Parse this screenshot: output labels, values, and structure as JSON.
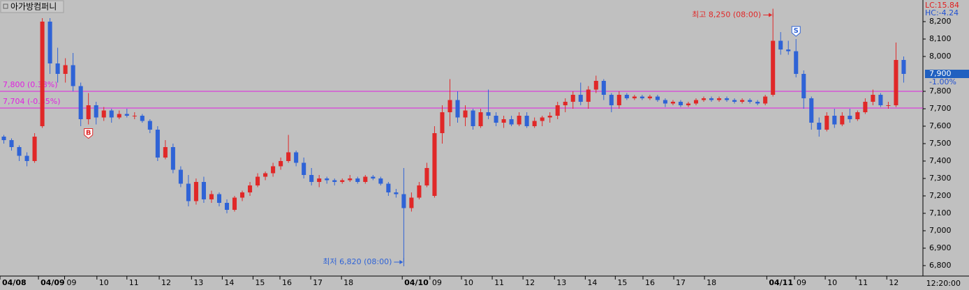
{
  "chart_data": {
    "type": "candlestick",
    "title": "아가방컴퍼니",
    "indicators": [
      {
        "text": "LC:15.84",
        "color": "#e02020"
      },
      {
        "text": "HC:-4.24",
        "color": "#2050d0"
      }
    ],
    "up_color": "#e02828",
    "down_color": "#2f63d6",
    "open": [
      7540,
      7520,
      7480,
      7430,
      7400,
      7600,
      8200,
      7960,
      7900,
      7950,
      7830,
      7640,
      7720,
      7650,
      7690,
      7650,
      7670,
      7660,
      7660,
      7630,
      7580,
      7420,
      7480,
      7350,
      7270,
      7170,
      7280,
      7180,
      7210,
      7160,
      7120,
      7190,
      7220,
      7260,
      7310,
      7330,
      7370,
      7400,
      7450,
      7390,
      7320,
      7280,
      7300,
      7290,
      7280,
      7290,
      7300,
      7280,
      7310,
      7300,
      7270,
      7220,
      7210,
      7130,
      7190,
      7260,
      7200,
      7560,
      7680,
      7750,
      7650,
      7690,
      7600,
      7680,
      7660,
      7620,
      7640,
      7610,
      7660,
      7600,
      7630,
      7650,
      7660,
      7720,
      7740,
      7780,
      7740,
      7810,
      7860,
      7780,
      7720,
      7780,
      7760,
      7770,
      7760,
      7770,
      7750,
      7730,
      7740,
      7720,
      7730,
      7750,
      7760,
      7750,
      7760,
      7750,
      7740,
      7750,
      7740,
      7730,
      7780,
      8090,
      8040,
      8030,
      7900,
      7760,
      7620,
      7580,
      7660,
      7610,
      7660,
      7640,
      7680,
      7740,
      7780,
      7720,
      7720,
      7980
    ],
    "high": [
      7550,
      7530,
      7490,
      7450,
      7560,
      8220,
      8220,
      8050,
      7990,
      8020,
      7850,
      7790,
      7740,
      7710,
      7700,
      7690,
      7700,
      7680,
      7670,
      7640,
      7600,
      7520,
      7500,
      7370,
      7320,
      7300,
      7310,
      7230,
      7220,
      7180,
      7200,
      7230,
      7280,
      7330,
      7340,
      7390,
      7420,
      7550,
      7460,
      7420,
      7360,
      7320,
      7310,
      7300,
      7300,
      7320,
      7310,
      7320,
      7320,
      7310,
      7280,
      7240,
      7360,
      7220,
      7280,
      7390,
      7600,
      7720,
      7870,
      7800,
      7720,
      7700,
      7700,
      7810,
      7680,
      7660,
      7660,
      7680,
      7680,
      7650,
      7660,
      7680,
      7740,
      7760,
      7800,
      7850,
      7830,
      7890,
      7870,
      7790,
      7800,
      7790,
      7780,
      7780,
      7780,
      7780,
      7760,
      7750,
      7750,
      7740,
      7760,
      7770,
      7770,
      7770,
      7770,
      7760,
      7760,
      7760,
      7750,
      7780,
      8250,
      8140,
      8090,
      8100,
      7920,
      7770,
      7650,
      7680,
      7700,
      7680,
      7700,
      7690,
      7760,
      7810,
      7790,
      7740,
      8080,
      8000
    ],
    "low": [
      7500,
      7460,
      7400,
      7370,
      7390,
      7590,
      7900,
      7850,
      7850,
      7800,
      7600,
      7610,
      7610,
      7630,
      7620,
      7640,
      7650,
      7640,
      7620,
      7560,
      7400,
      7410,
      7330,
      7250,
      7140,
      7150,
      7160,
      7160,
      7140,
      7100,
      7110,
      7170,
      7200,
      7250,
      7290,
      7310,
      7350,
      7390,
      7370,
      7300,
      7260,
      7250,
      7270,
      7260,
      7270,
      7280,
      7270,
      7270,
      7290,
      7260,
      7200,
      7190,
      6820,
      7110,
      7180,
      7250,
      7190,
      7500,
      7600,
      7620,
      7600,
      7580,
      7590,
      7640,
      7600,
      7590,
      7600,
      7600,
      7590,
      7590,
      7600,
      7620,
      7640,
      7680,
      7700,
      7720,
      7700,
      7790,
      7750,
      7680,
      7700,
      7750,
      7750,
      7750,
      7750,
      7740,
      7710,
      7720,
      7710,
      7710,
      7720,
      7740,
      7740,
      7740,
      7740,
      7730,
      7730,
      7730,
      7720,
      7720,
      7770,
      8010,
      8010,
      7880,
      7700,
      7580,
      7540,
      7570,
      7590,
      7600,
      7620,
      7630,
      7670,
      7720,
      7710,
      7700,
      7710,
      7850
    ],
    "close": [
      7520,
      7480,
      7430,
      7400,
      7540,
      8200,
      7960,
      7900,
      7950,
      7830,
      7640,
      7720,
      7650,
      7690,
      7650,
      7670,
      7660,
      7660,
      7630,
      7580,
      7420,
      7480,
      7350,
      7270,
      7170,
      7280,
      7180,
      7210,
      7160,
      7120,
      7190,
      7220,
      7260,
      7310,
      7330,
      7370,
      7400,
      7450,
      7390,
      7320,
      7280,
      7300,
      7290,
      7280,
      7290,
      7300,
      7280,
      7310,
      7300,
      7270,
      7220,
      7210,
      7130,
      7190,
      7260,
      7360,
      7560,
      7680,
      7750,
      7650,
      7690,
      7600,
      7680,
      7660,
      7620,
      7640,
      7610,
      7660,
      7600,
      7630,
      7650,
      7660,
      7720,
      7740,
      7780,
      7740,
      7810,
      7860,
      7780,
      7720,
      7780,
      7760,
      7770,
      7760,
      7770,
      7750,
      7730,
      7740,
      7720,
      7730,
      7750,
      7760,
      7750,
      7760,
      7750,
      7740,
      7750,
      7740,
      7730,
      7770,
      8090,
      8040,
      8030,
      7900,
      7760,
      7620,
      7580,
      7660,
      7610,
      7660,
      7640,
      7680,
      7740,
      7780,
      7720,
      7720,
      7980,
      7900
    ],
    "xlim": [
      0,
      120
    ],
    "xticks": [
      {
        "value": 0,
        "label": "04/08"
      },
      {
        "value": 5,
        "label": "04/09"
      },
      {
        "value": 8.4,
        "label": "09"
      },
      {
        "value": 12.6,
        "label": "10"
      },
      {
        "value": 16.5,
        "label": "11"
      },
      {
        "value": 20.7,
        "label": "12"
      },
      {
        "value": 24.9,
        "label": "13"
      },
      {
        "value": 28.9,
        "label": "14"
      },
      {
        "value": 32.9,
        "label": "15"
      },
      {
        "value": 36.4,
        "label": "16"
      },
      {
        "value": 40.4,
        "label": "17"
      },
      {
        "value": 44.4,
        "label": "18"
      },
      {
        "value": 52.3,
        "label": "04/10"
      },
      {
        "value": 55.9,
        "label": "09"
      },
      {
        "value": 60,
        "label": "10"
      },
      {
        "value": 64,
        "label": "11"
      },
      {
        "value": 68,
        "label": "12"
      },
      {
        "value": 72.1,
        "label": "13"
      },
      {
        "value": 76.1,
        "label": "14"
      },
      {
        "value": 80,
        "label": "15"
      },
      {
        "value": 83.6,
        "label": "16"
      },
      {
        "value": 87.6,
        "label": "17"
      },
      {
        "value": 91.6,
        "label": "18"
      },
      {
        "value": 99.7,
        "label": "04/11"
      },
      {
        "value": 103.3,
        "label": "09"
      },
      {
        "value": 107.3,
        "label": "10"
      },
      {
        "value": 111.3,
        "label": "11"
      },
      {
        "value": 115.3,
        "label": "12"
      }
    ],
    "time_label": "12:20:00",
    "ylim": [
      6740,
      8324
    ],
    "yticks": [
      {
        "value": 6800,
        "label": "6,800"
      },
      {
        "value": 6900,
        "label": "6,900"
      },
      {
        "value": 7000,
        "label": "7,000"
      },
      {
        "value": 7100,
        "label": "7,100"
      },
      {
        "value": 7200,
        "label": "7,200"
      },
      {
        "value": 7300,
        "label": "7,300"
      },
      {
        "value": 7400,
        "label": "7,400"
      },
      {
        "value": 7500,
        "label": "7,500"
      },
      {
        "value": 7600,
        "label": "7,600"
      },
      {
        "value": 7700,
        "label": "7,700"
      },
      {
        "value": 7800,
        "label": "7,800"
      },
      {
        "value": 8000,
        "label": "8,000"
      },
      {
        "value": 8100,
        "label": "8,100"
      },
      {
        "value": 8200,
        "label": "8,200"
      }
    ],
    "ref_lines": [
      {
        "value": 7800,
        "label": "7,800 (0.38%)"
      },
      {
        "value": 7704,
        "label": "7,704 (-0.85%)"
      }
    ],
    "ref_color": "#e020e0",
    "high_note": "최고 8,250 (08:00)",
    "low_note": "최저 6,820 (08:00)",
    "last_price": {
      "value": 7900,
      "label": "7,900",
      "change": "-1.00%"
    },
    "signals": [
      {
        "label": "B",
        "x": 11
      },
      {
        "label": "S",
        "x": 103
      }
    ]
  }
}
